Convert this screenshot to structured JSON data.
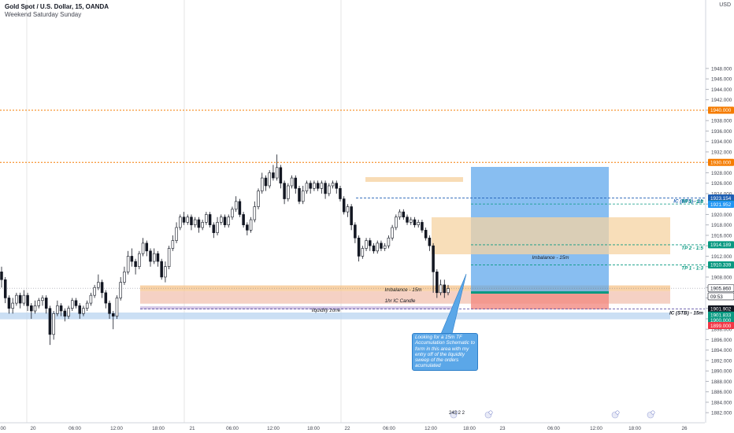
{
  "header": {
    "symbol": "Gold Spot / U.S. Dollar, 15, OANDA",
    "session": "Weekend Saturday Sunday",
    "currency": "USD"
  },
  "chart_data": {
    "type": "candlestick",
    "ylim": [
      1880.6,
      1951.0
    ],
    "price_ticks": [
      1882,
      1884,
      1886,
      1888,
      1890,
      1892,
      1894,
      1896,
      1898,
      1900,
      1902,
      1904,
      1906,
      1908,
      1910,
      1912,
      1914,
      1916,
      1918,
      1920,
      1922,
      1924,
      1926,
      1928,
      1930,
      1932,
      1934,
      1936,
      1938,
      1940,
      1942,
      1944,
      1946,
      1948
    ],
    "time_ticks": [
      "00",
      "20",
      "06:00",
      "12:00",
      "18:00",
      "21",
      "06:00",
      "12:00",
      "18:00",
      "22",
      "06:00",
      "12:00",
      "18:00",
      "23",
      "06:00",
      "12:00",
      "18:00",
      "26"
    ],
    "price_tags": [
      {
        "label": "1940.000",
        "color": "#f57c00"
      },
      {
        "label": "1930.000",
        "color": "#f57c00"
      },
      {
        "label": "1923.154",
        "color": "#1e5fb4"
      },
      {
        "label": "1922.014",
        "color": "#089981"
      },
      {
        "label": "1921.952",
        "color": "#2196f3"
      },
      {
        "label": "1914.189",
        "color": "#089981"
      },
      {
        "label": "1910.339",
        "color": "#089981"
      },
      {
        "label": "1905.860",
        "color": "#ffffff"
      },
      {
        "label": "09:53",
        "color": "#ffffff"
      },
      {
        "label": "1901.902",
        "color": "#131722"
      },
      {
        "label": "1901.833",
        "color": "#089981"
      },
      {
        "label": "1900.000",
        "color": "#089981"
      },
      {
        "label": "1899.000",
        "color": "#f23645"
      }
    ],
    "levels": [
      {
        "price": 1940.0,
        "color": "#f57c00"
      },
      {
        "price": 1930.0,
        "color": "#f57c00"
      }
    ],
    "zones": [
      {
        "from": 1905.3,
        "to": 1906.4,
        "color": "#f5c38a"
      },
      {
        "from": 1902.9,
        "to": 1905.3,
        "color": "#f2c2b0"
      },
      {
        "from": 1901.8,
        "to": 1902.4,
        "color": "#c9b8e0"
      },
      {
        "from": 1899.9,
        "to": 1901.2,
        "color": "#b9d4f0"
      }
    ],
    "targets": [
      {
        "label": "IC (BTS) - 1h",
        "price": 1923.154,
        "color": "#1e5fb4"
      },
      {
        "label": "TP 3 - 1:8",
        "price": 1922.014,
        "color": "#089981"
      },
      {
        "label": "TP 2 - 1:5",
        "price": 1914.189,
        "color": "#089981"
      },
      {
        "label": "TP 1 - 1:3",
        "price": 1910.339,
        "color": "#089981"
      }
    ],
    "annotations": {
      "ic_stb": "IC (STB) - 15m",
      "imbalance_right": "Imbalance - 15m",
      "imbalance_left": "Imbalance - 15m",
      "hr_ic_candle": "1hr IC Candle",
      "liquidity_zone": "liquidity zone",
      "callout": "Looking for a 15m TF Accumulation Schematic to form in this area with my entry off of the liquidity sweep of the orders acumulated"
    },
    "events_label": "243 2 2",
    "candles": [
      [
        1909.0,
        1907.5,
        1910.0,
        1906.0
      ],
      [
        1907.5,
        1904.0,
        1908.0,
        1903.0
      ],
      [
        1904.0,
        1902.0,
        1904.5,
        1901.0
      ],
      [
        1902.0,
        1903.0,
        1904.0,
        1901.0
      ],
      [
        1903.0,
        1904.5,
        1905.0,
        1902.5
      ],
      [
        1904.5,
        1903.0,
        1905.0,
        1902.0
      ],
      [
        1903.0,
        1904.5,
        1905.5,
        1902.5
      ],
      [
        1904.5,
        1902.5,
        1905.0,
        1901.5
      ],
      [
        1902.5,
        1901.5,
        1903.0,
        1900.0
      ],
      [
        1901.5,
        1902.5,
        1903.5,
        1901.0
      ],
      [
        1902.5,
        1903.5,
        1904.0,
        1902.0
      ],
      [
        1903.5,
        1904.0,
        1904.5,
        1902.5
      ],
      [
        1904.0,
        1902.0,
        1904.5,
        1901.0
      ],
      [
        1902.0,
        1897.0,
        1902.5,
        1895.0
      ],
      [
        1897.0,
        1901.0,
        1901.5,
        1896.0
      ],
      [
        1901.0,
        1902.5,
        1903.5,
        1900.5
      ],
      [
        1902.5,
        1901.5,
        1903.0,
        1900.5
      ],
      [
        1901.5,
        1900.5,
        1902.0,
        1899.5
      ],
      [
        1900.5,
        1902.0,
        1902.5,
        1900.0
      ],
      [
        1902.0,
        1903.5,
        1904.0,
        1901.5
      ],
      [
        1903.5,
        1902.5,
        1904.0,
        1902.0
      ],
      [
        1902.5,
        1901.0,
        1903.0,
        1900.0
      ],
      [
        1901.0,
        1902.0,
        1902.5,
        1900.5
      ],
      [
        1902.0,
        1903.0,
        1903.5,
        1901.5
      ],
      [
        1903.0,
        1904.5,
        1905.0,
        1902.5
      ],
      [
        1904.5,
        1906.0,
        1906.5,
        1904.0
      ],
      [
        1906.0,
        1907.0,
        1908.5,
        1905.5
      ],
      [
        1907.0,
        1905.0,
        1907.5,
        1904.0
      ],
      [
        1905.0,
        1903.0,
        1905.5,
        1902.0
      ],
      [
        1903.0,
        1901.0,
        1903.5,
        1900.0
      ],
      [
        1901.0,
        1900.5,
        1901.5,
        1898.0
      ],
      [
        1900.5,
        1904.0,
        1904.5,
        1900.0
      ],
      [
        1904.0,
        1907.0,
        1908.0,
        1903.5
      ],
      [
        1907.0,
        1909.0,
        1910.0,
        1906.5
      ],
      [
        1909.0,
        1912.0,
        1913.0,
        1908.5
      ],
      [
        1912.0,
        1911.0,
        1913.5,
        1910.0
      ],
      [
        1911.0,
        1910.0,
        1911.5,
        1908.5
      ],
      [
        1910.0,
        1912.5,
        1913.0,
        1909.5
      ],
      [
        1912.5,
        1914.5,
        1915.5,
        1912.0
      ],
      [
        1914.5,
        1913.0,
        1915.0,
        1912.0
      ],
      [
        1913.0,
        1911.0,
        1913.5,
        1910.0
      ],
      [
        1911.0,
        1912.5,
        1913.5,
        1910.5
      ],
      [
        1912.5,
        1911.0,
        1913.0,
        1910.0
      ],
      [
        1911.0,
        1908.0,
        1911.5,
        1907.5
      ],
      [
        1908.0,
        1910.0,
        1911.0,
        1907.0
      ],
      [
        1910.0,
        1913.5,
        1914.0,
        1909.5
      ],
      [
        1913.5,
        1915.0,
        1916.0,
        1913.0
      ],
      [
        1915.0,
        1917.5,
        1918.5,
        1914.5
      ],
      [
        1917.5,
        1919.5,
        1920.0,
        1917.0
      ],
      [
        1919.5,
        1918.5,
        1920.5,
        1918.0
      ],
      [
        1918.5,
        1919.5,
        1920.0,
        1918.0
      ],
      [
        1919.5,
        1918.0,
        1920.0,
        1917.0
      ],
      [
        1918.0,
        1919.0,
        1919.5,
        1917.5
      ],
      [
        1919.0,
        1917.5,
        1919.5,
        1916.5
      ],
      [
        1917.5,
        1918.5,
        1919.0,
        1917.0
      ],
      [
        1918.5,
        1920.0,
        1920.5,
        1918.0
      ],
      [
        1920.0,
        1918.0,
        1920.5,
        1917.5
      ],
      [
        1918.0,
        1916.5,
        1918.5,
        1915.5
      ],
      [
        1916.5,
        1918.5,
        1919.5,
        1916.0
      ],
      [
        1918.5,
        1919.5,
        1920.0,
        1918.0
      ],
      [
        1919.5,
        1918.0,
        1920.0,
        1917.5
      ],
      [
        1918.0,
        1919.5,
        1920.0,
        1917.5
      ],
      [
        1919.5,
        1921.0,
        1921.5,
        1919.0
      ],
      [
        1921.0,
        1922.5,
        1923.5,
        1920.5
      ],
      [
        1922.5,
        1920.0,
        1923.0,
        1919.5
      ],
      [
        1920.0,
        1918.0,
        1920.5,
        1917.5
      ],
      [
        1918.0,
        1917.0,
        1918.5,
        1916.0
      ],
      [
        1917.0,
        1919.0,
        1919.5,
        1916.5
      ],
      [
        1919.0,
        1921.5,
        1922.5,
        1918.5
      ],
      [
        1921.5,
        1924.5,
        1925.0,
        1921.0
      ],
      [
        1924.5,
        1927.0,
        1928.0,
        1924.0
      ],
      [
        1927.0,
        1925.5,
        1927.5,
        1924.5
      ],
      [
        1925.5,
        1928.0,
        1928.5,
        1925.0
      ],
      [
        1928.0,
        1927.0,
        1929.5,
        1926.5
      ],
      [
        1927.0,
        1929.0,
        1931.5,
        1926.5
      ],
      [
        1929.0,
        1926.0,
        1929.5,
        1925.0
      ],
      [
        1926.0,
        1923.0,
        1926.5,
        1922.0
      ],
      [
        1923.0,
        1925.5,
        1926.0,
        1922.5
      ],
      [
        1925.5,
        1927.0,
        1927.5,
        1925.0
      ],
      [
        1927.0,
        1925.0,
        1927.5,
        1924.0
      ],
      [
        1925.0,
        1922.5,
        1925.5,
        1922.0
      ],
      [
        1922.5,
        1924.5,
        1925.5,
        1922.0
      ],
      [
        1924.5,
        1926.0,
        1926.5,
        1924.0
      ],
      [
        1926.0,
        1925.0,
        1926.5,
        1924.0
      ],
      [
        1925.0,
        1926.0,
        1926.5,
        1924.5
      ],
      [
        1926.0,
        1925.0,
        1926.5,
        1924.5
      ],
      [
        1925.0,
        1926.0,
        1926.5,
        1924.0
      ],
      [
        1926.0,
        1924.0,
        1926.5,
        1923.0
      ],
      [
        1924.0,
        1925.5,
        1926.0,
        1923.5
      ],
      [
        1925.5,
        1926.0,
        1926.5,
        1925.0
      ],
      [
        1926.0,
        1925.0,
        1926.5,
        1924.0
      ],
      [
        1925.0,
        1923.0,
        1925.5,
        1922.5
      ],
      [
        1923.0,
        1920.5,
        1923.5,
        1920.0
      ],
      [
        1920.5,
        1921.5,
        1922.0,
        1919.5
      ],
      [
        1921.5,
        1918.0,
        1922.0,
        1917.0
      ],
      [
        1918.0,
        1915.5,
        1918.5,
        1914.5
      ],
      [
        1915.5,
        1912.0,
        1916.0,
        1911.0
      ],
      [
        1912.0,
        1913.5,
        1914.0,
        1911.5
      ],
      [
        1913.5,
        1915.0,
        1915.5,
        1913.0
      ],
      [
        1915.0,
        1914.0,
        1915.5,
        1913.0
      ],
      [
        1914.0,
        1913.0,
        1914.5,
        1912.5
      ],
      [
        1913.0,
        1914.5,
        1915.0,
        1912.5
      ],
      [
        1914.5,
        1913.5,
        1915.0,
        1913.0
      ],
      [
        1913.5,
        1914.0,
        1914.5,
        1913.0
      ],
      [
        1914.0,
        1915.5,
        1916.0,
        1913.5
      ],
      [
        1915.5,
        1917.5,
        1918.0,
        1915.0
      ],
      [
        1917.5,
        1919.5,
        1920.0,
        1917.0
      ],
      [
        1919.5,
        1920.5,
        1921.0,
        1919.0
      ],
      [
        1920.5,
        1919.5,
        1921.0,
        1919.0
      ],
      [
        1919.5,
        1918.5,
        1920.0,
        1918.0
      ],
      [
        1918.5,
        1919.0,
        1919.5,
        1918.0
      ],
      [
        1919.0,
        1918.0,
        1919.5,
        1917.5
      ],
      [
        1918.0,
        1918.5,
        1919.0,
        1917.5
      ],
      [
        1918.5,
        1917.0,
        1919.0,
        1916.5
      ],
      [
        1917.0,
        1915.5,
        1917.5,
        1915.0
      ],
      [
        1915.5,
        1914.0,
        1916.0,
        1913.0
      ],
      [
        1914.0,
        1909.0,
        1914.5,
        1905.0
      ],
      [
        1909.0,
        1905.0,
        1909.5,
        1904.0
      ],
      [
        1905.0,
        1906.5,
        1907.5,
        1904.5
      ],
      [
        1906.5,
        1905.0,
        1907.5,
        1904.0
      ],
      [
        1905.0,
        1905.8,
        1906.5,
        1904.5
      ]
    ]
  }
}
